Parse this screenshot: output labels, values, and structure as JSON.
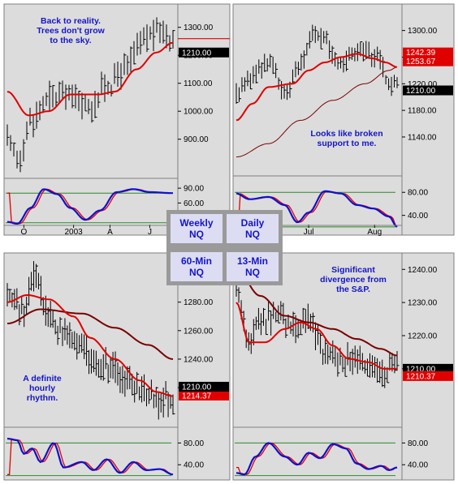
{
  "colors": {
    "bg": "#dcdcdc",
    "frame": "#7f7f7f",
    "price_bar": "#000000",
    "ma_fast": "#e00000",
    "ma_slow": "#7a0000",
    "osc_a": "#1010d0",
    "osc_b": "#e00000",
    "osc_ref": "#2a8a2a",
    "note": "#1515c8",
    "tag": "#000000"
  },
  "legend": {
    "weekly": "Weekly",
    "weekly_sub": "NQ",
    "daily": "Daily",
    "daily_sub": "NQ",
    "min60": "60-Min",
    "min60_sub": "NQ",
    "min13": "13-Min",
    "min13_sub": "NQ"
  },
  "chart_data": [
    {
      "type": "line",
      "name": "Weekly NQ",
      "annotation": [
        "Back to reality.",
        "Trees don't grow",
        "to the sky."
      ],
      "y_ticks": [
        "1300.00",
        "1200.00",
        "1100.00",
        "1000.00",
        "900.00"
      ],
      "y_tick_values": [
        1300,
        1200,
        1100,
        1000,
        900
      ],
      "ylim": [
        760,
        1360
      ],
      "x_ticks": [
        "O",
        "2003",
        "A",
        "J"
      ],
      "price_tags": [
        "1210.00"
      ],
      "osc_ticks": [
        "90.00",
        "60.00"
      ],
      "osc_tick_values": [
        90,
        60
      ],
      "osc_ylim": [
        0,
        100
      ],
      "osc_ref": [
        80,
        20
      ]
    },
    {
      "type": "line",
      "name": "Daily NQ",
      "annotation": [
        "Looks like broken",
        "support to me."
      ],
      "y_ticks": [
        "1300.00",
        "1260.00",
        "1220.00",
        "1180.00",
        "1140.00"
      ],
      "y_tick_values": [
        1300,
        1260,
        1220,
        1180,
        1140
      ],
      "ylim": [
        1090,
        1330
      ],
      "x_ticks": [
        "Jul",
        "Aug"
      ],
      "price_tags": [
        "1253.67",
        "1242.39",
        "1210.00"
      ],
      "osc_ticks": [
        "80.00",
        "40.00"
      ],
      "osc_tick_values": [
        80,
        40
      ],
      "osc_ylim": [
        10,
        100
      ],
      "osc_ref": [
        80,
        20
      ]
    },
    {
      "type": "line",
      "name": "60-Min NQ",
      "annotation": [
        "A definite",
        "hourly",
        "rhythm."
      ],
      "y_ticks": [
        "1280.00",
        "1260.00",
        "1240.00",
        "1220.00"
      ],
      "y_tick_values": [
        1280,
        1260,
        1240,
        1220
      ],
      "ylim": [
        1195,
        1310
      ],
      "price_tags": [
        "1214.37",
        "1210.00"
      ],
      "osc_ticks": [
        "80.00",
        "40.00"
      ],
      "osc_tick_values": [
        80,
        40
      ],
      "osc_ylim": [
        15,
        100
      ],
      "osc_ref": [
        80,
        20
      ]
    },
    {
      "type": "line",
      "name": "13-Min NQ",
      "annotation": [
        "Significant",
        "divergence from",
        "the S&P."
      ],
      "y_ticks": [
        "1240.00",
        "1230.00",
        "1220.00",
        "1210.00"
      ],
      "y_tick_values": [
        1240,
        1230,
        1220,
        1210
      ],
      "ylim": [
        1197,
        1243
      ],
      "price_tags": [
        "1210.00",
        "1210.37"
      ],
      "osc_ticks": [
        "80.00",
        "40.00"
      ],
      "osc_tick_values": [
        80,
        40
      ],
      "osc_ylim": [
        15,
        100
      ],
      "osc_ref": [
        80,
        20
      ]
    }
  ]
}
